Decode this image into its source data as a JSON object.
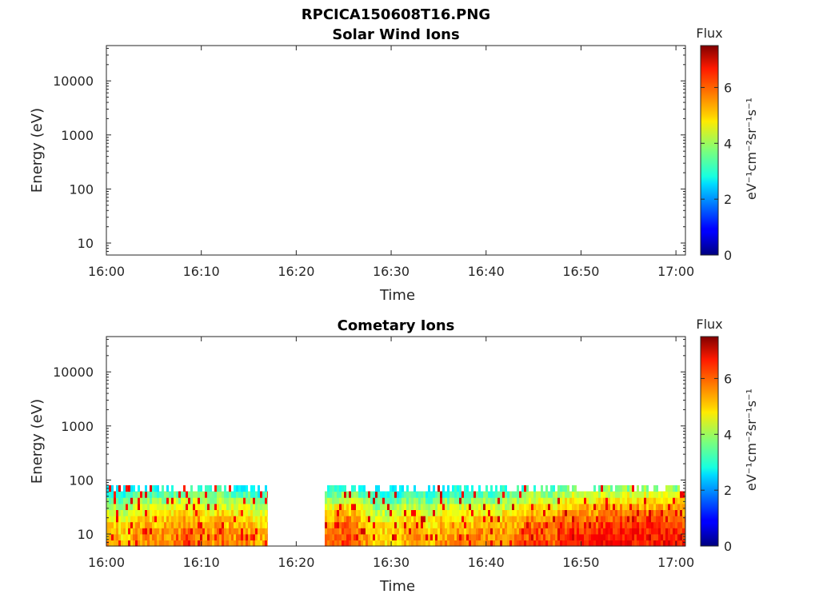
{
  "figure": {
    "title": "RPCICA150608T16.PNG"
  },
  "chart_data": [
    {
      "type": "heatmap",
      "title": "Solar Wind Ions",
      "xlabel": "Time",
      "ylabel": "Energy (eV)",
      "x_ticks": [
        "16:00",
        "16:10",
        "16:20",
        "16:30",
        "16:40",
        "16:50",
        "17:00"
      ],
      "x_range": [
        "16:00",
        "17:01"
      ],
      "y_scale": "log",
      "y_ticks": [
        "10",
        "100",
        "1000",
        "10000"
      ],
      "y_range": [
        6,
        45000
      ],
      "colorbar": {
        "label": "Flux",
        "unit": "eV⁻¹cm⁻²sr⁻¹s⁻¹",
        "ticks": [
          "0",
          "2",
          "4",
          "6"
        ],
        "range": [
          0,
          7.5
        ]
      },
      "colormap": "jet",
      "data_segments": []
    },
    {
      "type": "heatmap",
      "title": "Cometary Ions",
      "xlabel": "Time",
      "ylabel": "Energy (eV)",
      "x_ticks": [
        "16:00",
        "16:10",
        "16:20",
        "16:30",
        "16:40",
        "16:50",
        "17:00"
      ],
      "x_range": [
        "16:00",
        "17:01"
      ],
      "y_scale": "log",
      "y_ticks": [
        "10",
        "100",
        "1000",
        "10000"
      ],
      "y_range": [
        6,
        45000
      ],
      "colorbar": {
        "label": "Flux",
        "unit": "eV⁻¹cm⁻²sr⁻¹s⁻¹",
        "ticks": [
          "0",
          "2",
          "4",
          "6"
        ],
        "range": [
          0,
          7.5
        ]
      },
      "colormap": "jet",
      "data_segments": [
        {
          "start": "16:00",
          "end": "16:17",
          "energy_range": [
            6,
            80
          ],
          "typical_flux": 5.5,
          "peak_flux": 6.8
        },
        {
          "start": "16:23",
          "end": "17:01",
          "energy_range": [
            6,
            80
          ],
          "typical_flux": 5.7,
          "peak_flux": 7.0
        }
      ]
    }
  ]
}
